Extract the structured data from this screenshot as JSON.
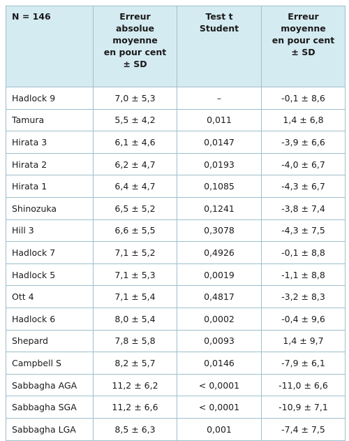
{
  "table": {
    "header": [
      [
        "N = 146"
      ],
      [
        "Erreur",
        "absolue",
        "moyenne",
        "en pour cent",
        "± SD"
      ],
      [
        "Test t",
        "Student"
      ],
      [
        "Erreur",
        "moyenne",
        "en pour cent",
        "± SD"
      ]
    ],
    "rows": [
      [
        "Hadlock 9",
        "7,0 ± 5,3",
        "–",
        "-0,1 ± 8,6"
      ],
      [
        "Tamura",
        "5,5 ± 4,2",
        "0,011",
        "1,4 ± 6,8"
      ],
      [
        "Hirata 3",
        "6,1 ± 4,6",
        "0,0147",
        "-3,9 ± 6,6"
      ],
      [
        "Hirata 2",
        "6,2 ± 4,7",
        "0,0193",
        "-4,0 ± 6,7"
      ],
      [
        "Hirata 1",
        "6,4 ± 4,7",
        "0,1085",
        "-4,3 ± 6,7"
      ],
      [
        "Shinozuka",
        "6,5 ± 5,2",
        "0,1241",
        "-3,8 ± 7,4"
      ],
      [
        "Hill 3",
        "6,6 ± 5,5",
        "0,3078",
        "-4,3 ± 7,5"
      ],
      [
        "Hadlock 7",
        "7,1 ± 5,2",
        "0,4926",
        "-0,1 ± 8,8"
      ],
      [
        "Hadlock 5",
        "7,1 ± 5,3",
        "0,0019",
        "-1,1 ± 8,8"
      ],
      [
        "Ott 4",
        "7,1 ± 5,4",
        "0,4817",
        "-3,2 ± 8,3"
      ],
      [
        "Hadlock 6",
        "8,0 ± 5,4",
        "0,0002",
        "-0,4 ± 9,6"
      ],
      [
        "Shepard",
        "7,8 ± 5,8",
        "0,0093",
        "1,4 ± 9,7"
      ],
      [
        "Campbell S",
        "8,2 ± 5,7",
        "0,0146",
        "-7,9 ± 6,1"
      ],
      [
        "Sabbagha AGA",
        "11,2 ± 6,2",
        "< 0,0001",
        "-11,0 ± 6,6"
      ],
      [
        "Sabbagha SGA",
        "11,2 ± 6,6",
        "< 0,0001",
        "-10,9 ± 7,1"
      ],
      [
        "Sabbagha LGA",
        "8,5 ± 6,3",
        "0,001",
        "-7,4 ± 7,5"
      ]
    ]
  }
}
